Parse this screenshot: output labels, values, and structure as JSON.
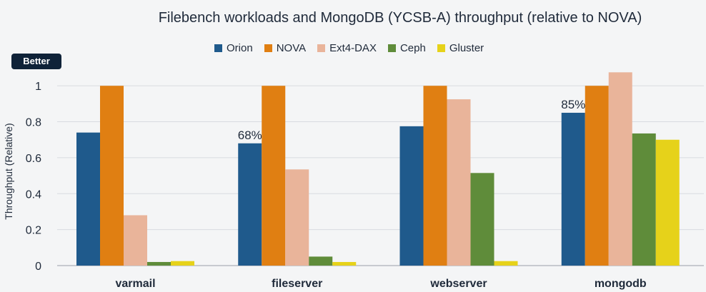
{
  "chart_data": {
    "type": "bar",
    "title": "Filebench workloads and MongoDB (YCSB-A) throughput (relative to NOVA)",
    "badge": "Better",
    "ylabel": "Throughput (Relative)",
    "xlabel": "",
    "ylim": [
      0,
      1.1
    ],
    "yticks": [
      "0",
      "0.2",
      "0.4",
      "0.6",
      "0.8",
      "1"
    ],
    "categories": [
      "varmail",
      "fileserver",
      "webserver",
      "mongodb"
    ],
    "legend_position": "top",
    "grid": true,
    "series": [
      {
        "name": "Orion",
        "color": "#1f5a8c",
        "values": [
          0.74,
          0.68,
          0.775,
          0.85
        ]
      },
      {
        "name": "NOVA",
        "color": "#e07f12",
        "values": [
          1.0,
          1.0,
          1.0,
          1.0
        ]
      },
      {
        "name": "Ext4-DAX",
        "color": "#e9b49a",
        "values": [
          0.28,
          0.535,
          0.925,
          1.075
        ]
      },
      {
        "name": "Ceph",
        "color": "#5f8c3a",
        "values": [
          0.02,
          0.05,
          0.515,
          0.735
        ]
      },
      {
        "name": "Gluster",
        "color": "#e6d21a",
        "values": [
          0.025,
          0.02,
          0.025,
          0.7
        ]
      }
    ],
    "annotations": [
      {
        "series": "Orion",
        "category": "fileserver",
        "text": "68%"
      },
      {
        "series": "Orion",
        "category": "mongodb",
        "text": "85%"
      }
    ]
  }
}
